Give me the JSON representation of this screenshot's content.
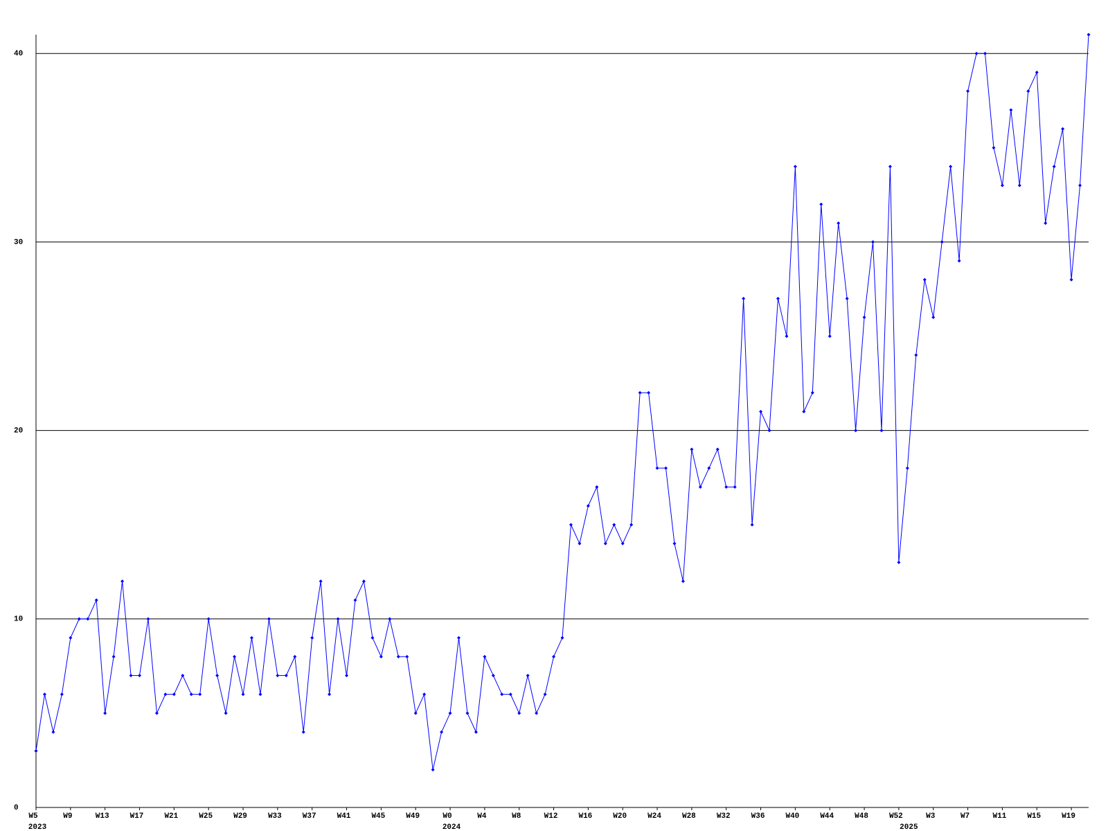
{
  "chart_data": {
    "type": "line",
    "categories": [
      "W5",
      null,
      null,
      null,
      "W9",
      null,
      null,
      null,
      "W13",
      null,
      null,
      null,
      "W17",
      null,
      null,
      null,
      "W21",
      null,
      null,
      null,
      "W25",
      null,
      null,
      null,
      "W29",
      null,
      null,
      null,
      "W33",
      null,
      null,
      null,
      "W37",
      null,
      null,
      null,
      "W41",
      null,
      null,
      null,
      "W45",
      null,
      null,
      null,
      "W49",
      null,
      null,
      null,
      "W0",
      null,
      null,
      null,
      "W4",
      null,
      null,
      null,
      "W8",
      null,
      null,
      null,
      "W12",
      null,
      null,
      null,
      "W16",
      null,
      null,
      null,
      "W20",
      null,
      null,
      null,
      "W24",
      null,
      null,
      null,
      "W28",
      null,
      null,
      null,
      "W32",
      null,
      null,
      null,
      "W36",
      null,
      null,
      null,
      "W40",
      null,
      null,
      null,
      "W44",
      null,
      null,
      null,
      "W48",
      null,
      null,
      null,
      "W52",
      null,
      null,
      null,
      "W3",
      null,
      null,
      null,
      "W7",
      null,
      null,
      null,
      "W11",
      null,
      null,
      null,
      "W15",
      null,
      null,
      null,
      "W19",
      null,
      null
    ],
    "year_labels": [
      "2023",
      null,
      null,
      null,
      null,
      null,
      null,
      null,
      null,
      null,
      null,
      null,
      null,
      null,
      null,
      null,
      null,
      null,
      null,
      null,
      null,
      null,
      null,
      null,
      null,
      null,
      null,
      null,
      null,
      null,
      null,
      null,
      null,
      null,
      null,
      null,
      null,
      null,
      null,
      null,
      null,
      null,
      null,
      null,
      null,
      null,
      null,
      null,
      "2024",
      null,
      null,
      null,
      null,
      null,
      null,
      null,
      null,
      null,
      null,
      null,
      null,
      null,
      null,
      null,
      null,
      null,
      null,
      null,
      null,
      null,
      null,
      null,
      null,
      null,
      null,
      null,
      null,
      null,
      null,
      null,
      null,
      null,
      null,
      null,
      null,
      null,
      null,
      null,
      null,
      null,
      null,
      null,
      null,
      null,
      null,
      null,
      null,
      null,
      null,
      null,
      null,
      "2025",
      null,
      null,
      null,
      null,
      null,
      null,
      null,
      null,
      null,
      null,
      null,
      null,
      null,
      null,
      null,
      null,
      null,
      null,
      null,
      null,
      null
    ],
    "series": [
      {
        "color": "#0000ff",
        "values": [
          3,
          6,
          4,
          6,
          9,
          10,
          10,
          11,
          5,
          8,
          12,
          7,
          7,
          10,
          5,
          6,
          6,
          7,
          6,
          6,
          10,
          7,
          5,
          8,
          6,
          9,
          6,
          10,
          7,
          7,
          8,
          4,
          9,
          12,
          6,
          10,
          7,
          11,
          12,
          9,
          8,
          10,
          8,
          8,
          5,
          6,
          2,
          4,
          5,
          9,
          5,
          4,
          8,
          7,
          6,
          6,
          5,
          7,
          5,
          6,
          8,
          9,
          15,
          14,
          16,
          17,
          14,
          15,
          14,
          15,
          22,
          22,
          18,
          18,
          14,
          12,
          19,
          17,
          18,
          19,
          17,
          17,
          27,
          15,
          21,
          20,
          27,
          25,
          34,
          21,
          22,
          32,
          25,
          31,
          27,
          20,
          26,
          30,
          20,
          34,
          13,
          18,
          24,
          28,
          26,
          30,
          34,
          29,
          38,
          40,
          40,
          35,
          33,
          37,
          33,
          38,
          39,
          31,
          34,
          36,
          28,
          33,
          41
        ]
      }
    ],
    "ylim": [
      0,
      41
    ],
    "yticks": [
      0,
      10,
      20,
      30,
      40
    ],
    "grid": true
  }
}
